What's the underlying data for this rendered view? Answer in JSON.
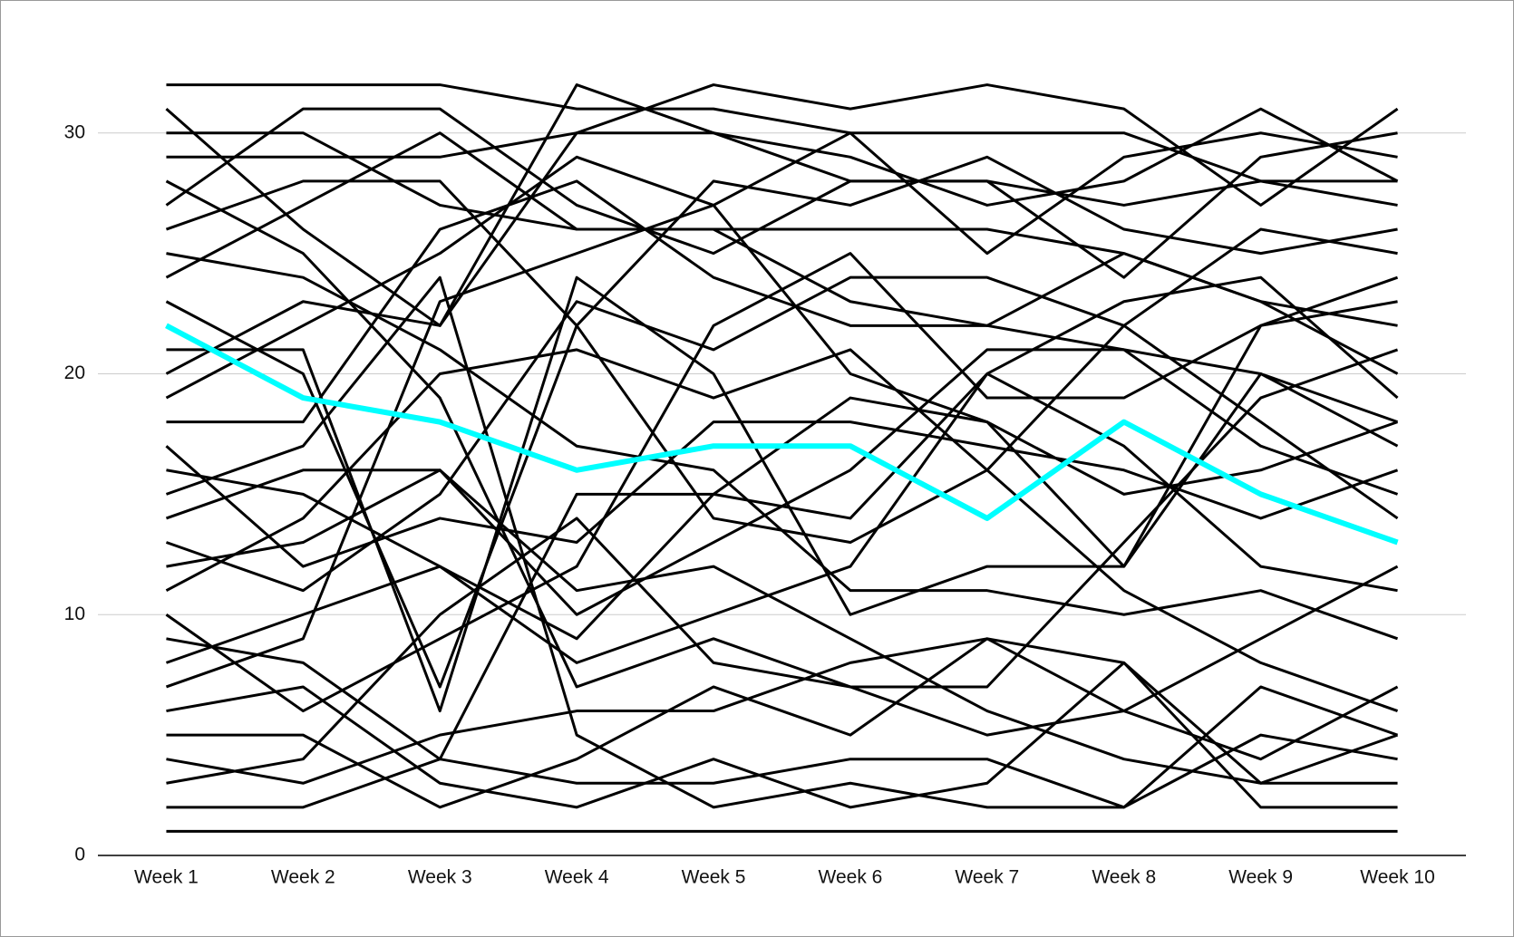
{
  "chart_data": {
    "type": "line",
    "categories": [
      "Week 1",
      "Week 2",
      "Week 3",
      "Week 4",
      "Week 5",
      "Week 6",
      "Week 7",
      "Week 8",
      "Week 9",
      "Week 10"
    ],
    "ylim": [
      0,
      33
    ],
    "yticks": [
      0,
      10,
      20,
      30
    ],
    "grid": true,
    "series": [
      {
        "color": "#000000",
        "values": [
          32,
          32,
          32,
          31,
          31,
          30,
          30,
          30,
          28,
          28
        ]
      },
      {
        "color": "#000000",
        "values": [
          31,
          26,
          22,
          32,
          30,
          28,
          28,
          27,
          28,
          27
        ]
      },
      {
        "color": "#000000",
        "values": [
          30,
          30,
          27,
          26,
          26,
          23,
          22,
          25,
          23,
          22
        ]
      },
      {
        "color": "#000000",
        "values": [
          29,
          29,
          29,
          30,
          30,
          29,
          27,
          28,
          31,
          28
        ]
      },
      {
        "color": "#000000",
        "values": [
          28,
          25,
          19,
          7,
          9,
          7,
          7,
          13,
          19,
          21
        ]
      },
      {
        "color": "#000000",
        "values": [
          27,
          31,
          31,
          27,
          25,
          28,
          28,
          24,
          29,
          30
        ]
      },
      {
        "color": "#000000",
        "values": [
          26,
          28,
          28,
          22,
          14,
          13,
          16,
          22,
          26,
          25
        ]
      },
      {
        "color": "#000000",
        "values": [
          25,
          24,
          21,
          17,
          16,
          11,
          11,
          10,
          11,
          9
        ]
      },
      {
        "color": "#000000",
        "values": [
          24,
          27,
          30,
          26,
          26,
          26,
          26,
          25,
          23,
          20
        ]
      },
      {
        "color": "#000000",
        "values": [
          23,
          20,
          7,
          22,
          28,
          27,
          29,
          26,
          25,
          26
        ]
      },
      {
        "color": "#000000",
        "values": [
          21,
          21,
          6,
          24,
          20,
          10,
          12,
          12,
          20,
          17
        ]
      },
      {
        "color": "#000000",
        "values": [
          20,
          23,
          22,
          30,
          32,
          31,
          32,
          31,
          27,
          31
        ]
      },
      {
        "color": "#000000",
        "values": [
          19,
          22,
          25,
          29,
          27,
          30,
          25,
          29,
          30,
          29
        ]
      },
      {
        "color": "#000000",
        "values": [
          18,
          18,
          26,
          28,
          24,
          22,
          22,
          21,
          20,
          18
        ]
      },
      {
        "color": "#000000",
        "values": [
          17,
          12,
          14,
          13,
          18,
          18,
          17,
          16,
          14,
          16
        ]
      },
      {
        "color": "#000000",
        "values": [
          16,
          15,
          12,
          9,
          15,
          19,
          18,
          15,
          16,
          18
        ]
      },
      {
        "color": "#000000",
        "values": [
          15,
          17,
          24,
          5,
          2,
          3,
          2,
          2,
          5,
          4
        ]
      },
      {
        "color": "#000000",
        "values": [
          14,
          16,
          16,
          10,
          13,
          16,
          21,
          21,
          17,
          15
        ]
      },
      {
        "color": "#000000",
        "values": [
          13,
          11,
          15,
          23,
          21,
          24,
          24,
          22,
          18,
          14
        ]
      },
      {
        "color": "#000000",
        "values": [
          12,
          13,
          16,
          11,
          12,
          9,
          6,
          4,
          3,
          3
        ]
      },
      {
        "color": "#000000",
        "values": [
          11,
          14,
          20,
          21,
          19,
          21,
          16,
          11,
          8,
          6
        ]
      },
      {
        "color": "#000000",
        "values": [
          10,
          6,
          9,
          12,
          22,
          25,
          19,
          19,
          22,
          23
        ]
      },
      {
        "color": "#000000",
        "values": [
          9,
          8,
          4,
          15,
          15,
          14,
          20,
          17,
          12,
          11
        ]
      },
      {
        "color": "#000000",
        "values": [
          8,
          10,
          12,
          8,
          10,
          12,
          20,
          23,
          24,
          19
        ]
      },
      {
        "color": "#000000",
        "values": [
          7,
          9,
          23,
          25,
          27,
          20,
          18,
          12,
          22,
          24
        ]
      },
      {
        "color": "#000000",
        "values": [
          6,
          7,
          3,
          2,
          4,
          2,
          3,
          8,
          2,
          2
        ]
      },
      {
        "color": "#000000",
        "values": [
          5,
          5,
          2,
          4,
          7,
          5,
          9,
          6,
          9,
          12
        ]
      },
      {
        "color": "#000000",
        "values": [
          4,
          3,
          5,
          6,
          6,
          8,
          9,
          8,
          3,
          5
        ]
      },
      {
        "color": "#000000",
        "values": [
          3,
          4,
          10,
          14,
          8,
          7,
          5,
          6,
          4,
          7
        ]
      },
      {
        "color": "#000000",
        "values": [
          2,
          2,
          4,
          3,
          3,
          4,
          4,
          2,
          7,
          5
        ]
      },
      {
        "color": "#000000",
        "values": [
          1,
          1,
          1,
          1,
          1,
          1,
          1,
          1,
          1,
          1
        ]
      },
      {
        "color": "#00ffff",
        "values": [
          22,
          19,
          18,
          16,
          17,
          17,
          14,
          18,
          15,
          13
        ]
      }
    ]
  }
}
